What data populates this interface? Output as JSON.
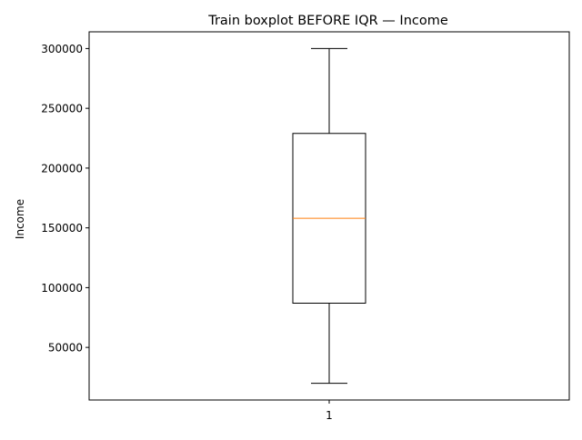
{
  "chart_data": {
    "type": "box",
    "title": "Train boxplot BEFORE IQR — Income",
    "xlabel": "",
    "ylabel": "Income",
    "categories": [
      "1"
    ],
    "boxes": [
      {
        "category": "1",
        "whisker_low": 20000,
        "q1": 87000,
        "median": 158000,
        "q3": 229000,
        "whisker_high": 300000
      }
    ],
    "ylim": [
      6000,
      314000
    ],
    "yticks": [
      50000,
      100000,
      150000,
      200000,
      250000,
      300000
    ],
    "ytick_labels": [
      "50000",
      "100000",
      "150000",
      "200000",
      "250000",
      "300000"
    ],
    "grid": false,
    "colors": {
      "box": "#000000",
      "median": "#ff7f0e",
      "whisker": "#000000",
      "axes": "#000000"
    }
  }
}
